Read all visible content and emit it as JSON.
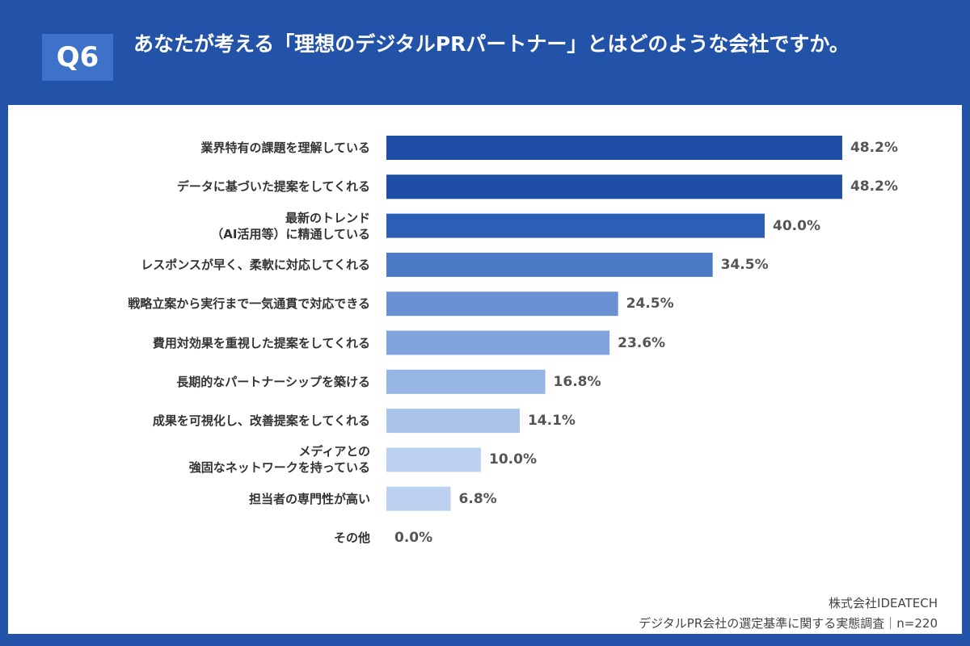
{
  "badge": "Q6",
  "chart_data": {
    "type": "hbar",
    "title": "あなたが考える「理想のデジタルPRパートナー」とはどのような会社ですか。",
    "categories": [
      "業界特有の課題を理解している",
      "データに基づいた提案をしてくれる",
      "最新のトレンド\n（AI活用等）に精通している",
      "レスポンスが早く、柔軟に対応してくれる",
      "戦略立案から実行まで一気通貫で対応できる",
      "費用対効果を重視した提案をしてくれる",
      "長期的なパートナーシップを築ける",
      "成果を可視化し、改善提案をしてくれる",
      "メディアとの\n強固なネットワークを持っている",
      "担当者の専門性が高い",
      "その他"
    ],
    "values": [
      48.2,
      48.2,
      40.0,
      34.5,
      24.5,
      23.6,
      16.8,
      14.1,
      10.0,
      6.8,
      0.0
    ],
    "value_labels": [
      "48.2%",
      "48.2%",
      "40.0%",
      "34.5%",
      "24.5%",
      "23.6%",
      "16.8%",
      "14.1%",
      "10.0%",
      "6.8%",
      "0.0%"
    ],
    "colors": [
      "#1f4ea6",
      "#1f4ea6",
      "#2e5fb6",
      "#4d7ac7",
      "#6a91d3",
      "#7fa3da",
      "#98b6e3",
      "#a9c3e9",
      "#bcd1ef",
      "#bcd1ef",
      "#c8daf2"
    ],
    "xlim": [
      0,
      50
    ]
  },
  "source": [
    "株式会社IDEATECH",
    "デジタルPR会社の選定基準に関する実態調査｜n=220"
  ]
}
